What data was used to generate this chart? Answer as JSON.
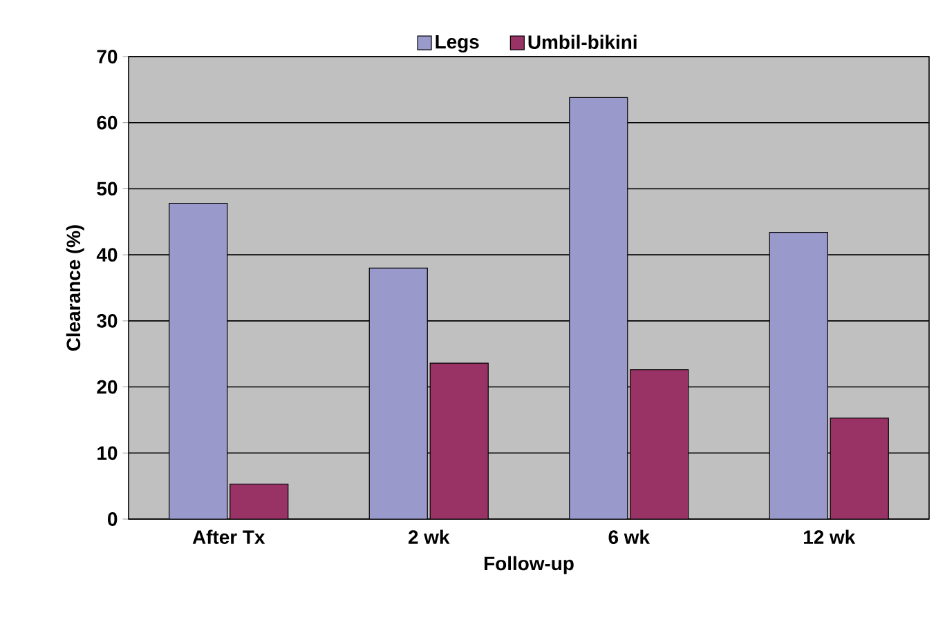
{
  "chart_data": {
    "type": "bar",
    "xlabel": "Follow-up",
    "ylabel": "Clearance (%)",
    "categories": [
      "After Tx",
      "2 wk",
      "6 wk",
      "12 wk"
    ],
    "series": [
      {
        "name": "Legs",
        "color": "#9999cc",
        "values": [
          47.8,
          38.0,
          63.8,
          43.4
        ]
      },
      {
        "name": "Umbil-bikini",
        "color": "#993366",
        "values": [
          5.3,
          23.6,
          22.6,
          15.3
        ]
      }
    ],
    "ylim": [
      0,
      70
    ],
    "yticks": [
      0,
      10,
      20,
      30,
      40,
      50,
      60,
      70
    ],
    "grid": "y",
    "legend": "top"
  }
}
